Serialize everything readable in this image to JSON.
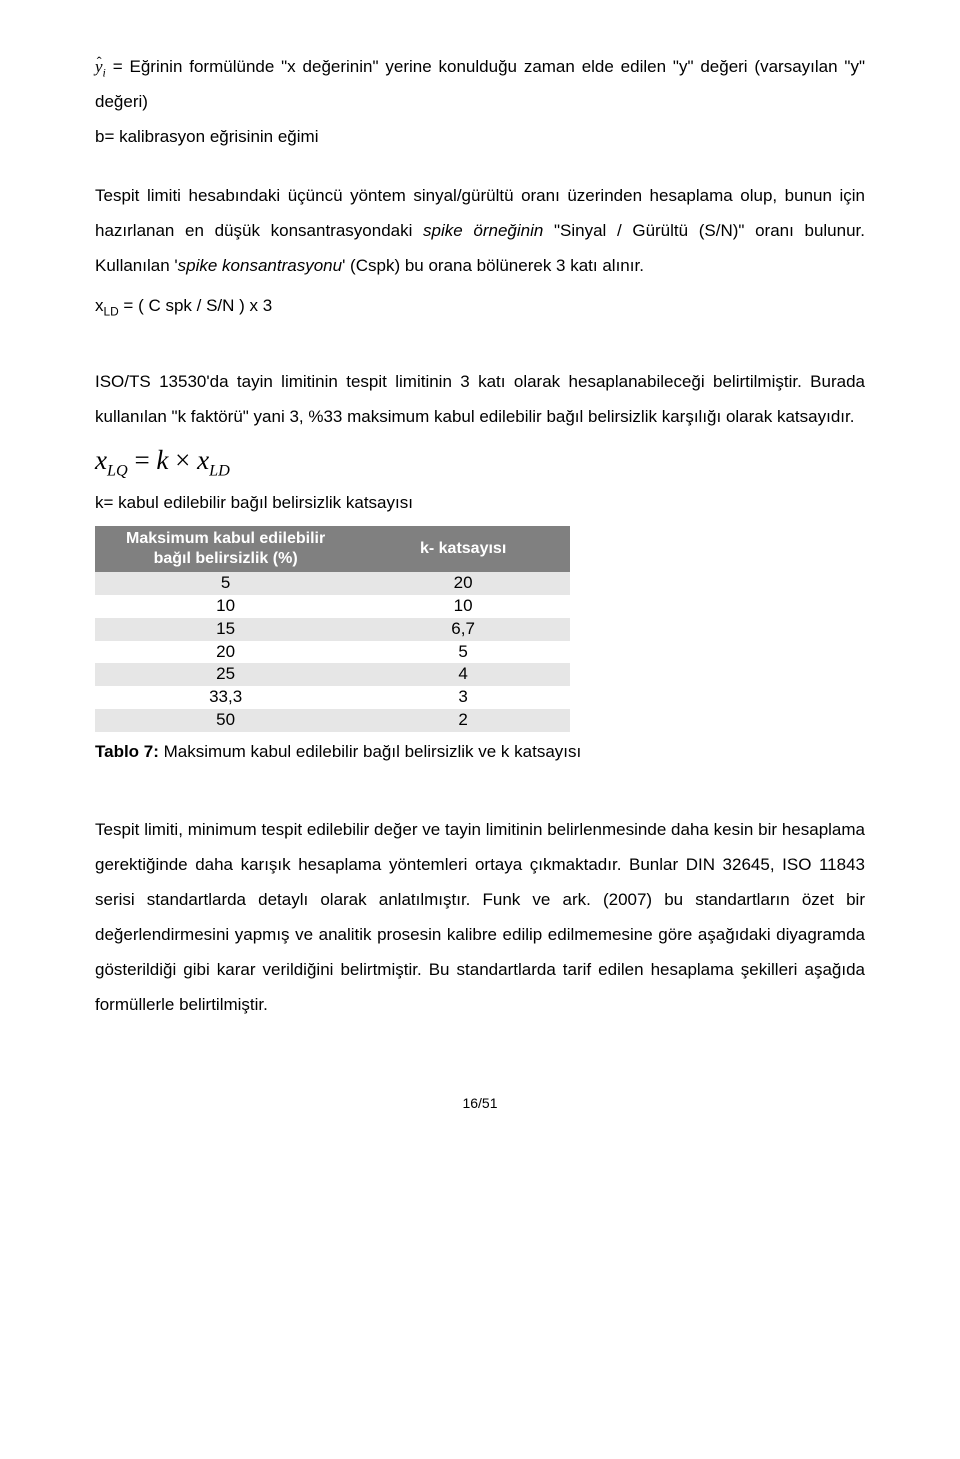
{
  "definitions": {
    "yhat_text": " = Eğrinin formülünde \"x değerinin\" yerine konulduğu zaman elde edilen \"y\" değeri (varsayılan \"y\" değeri)",
    "b_text": "b= kalibrasyon eğrisinin eğimi"
  },
  "method_para": "Tespit limiti hesabındaki üçüncü yöntem sinyal/gürültü oranı üzerinden hesaplama olup, bunun için hazırlanan en düşük konsantrasyondaki ",
  "method_spike1": "spike örneğinin",
  "method_mid": " \"Sinyal / Gürültü (S/N)\" oranı bulunur. Kullanılan '",
  "method_spike2": "spike konsantrasyonu",
  "method_end": "' (Cspk) bu orana bölünerek 3 katı alınır.",
  "xld_formula": "x",
  "xld_sub": "LD",
  "xld_rest": " = ( C spk /  S/N ) x 3",
  "iso_para": "ISO/TS 13530'da tayin limitinin tespit limitinin 3 katı olarak hesaplanabileceği belirtilmiştir. Burada kullanılan \"k faktörü\" yani 3, %33 maksimum kabul edilebilir bağıl belirsizlik karşılığı olarak katsayıdır.",
  "big_formula": {
    "x1": "x",
    "sub1": "LQ",
    "eq": " = ",
    "k": "k",
    "times": " × ",
    "x2": "x",
    "sub2": "LD"
  },
  "k_def": "k= kabul edilebilir bağıl belirsizlik katsayısı",
  "table": {
    "header1_line1": "Maksimum kabul edilebilir",
    "header1_line2": "bağıl belirsizlik (%)",
    "header2": "k- katsayısı",
    "rows": [
      {
        "c1": "5",
        "c2": "20"
      },
      {
        "c1": "10",
        "c2": "10"
      },
      {
        "c1": "15",
        "c2": "6,7"
      },
      {
        "c1": "20",
        "c2": "5"
      },
      {
        "c1": "25",
        "c2": "4"
      },
      {
        "c1": "33,3",
        "c2": "3"
      },
      {
        "c1": "50",
        "c2": "2"
      }
    ]
  },
  "table_caption_bold": "Tablo 7: ",
  "table_caption_rest": "Maksimum kabul edilebilir bağıl belirsizlik ve k katsayısı",
  "final_para": "Tespit limiti, minimum tespit edilebilir değer ve tayin limitinin belirlenmesinde daha kesin bir hesaplama gerektiğinde daha karışık hesaplama yöntemleri ortaya çıkmaktadır. Bunlar DIN 32645, ISO 11843 serisi standartlarda detaylı olarak anlatılmıştır. Funk ve ark. (2007) bu standartların özet bir değerlendirmesini yapmış ve analitik prosesin kalibre edilip edilmemesine göre aşağıdaki diyagramda gösterildiği gibi karar verildiğini belirtmiştir. Bu standartlarda tarif edilen hesaplama şekilleri aşağıda formüllerle belirtilmiştir.",
  "page_number": "16/51"
}
